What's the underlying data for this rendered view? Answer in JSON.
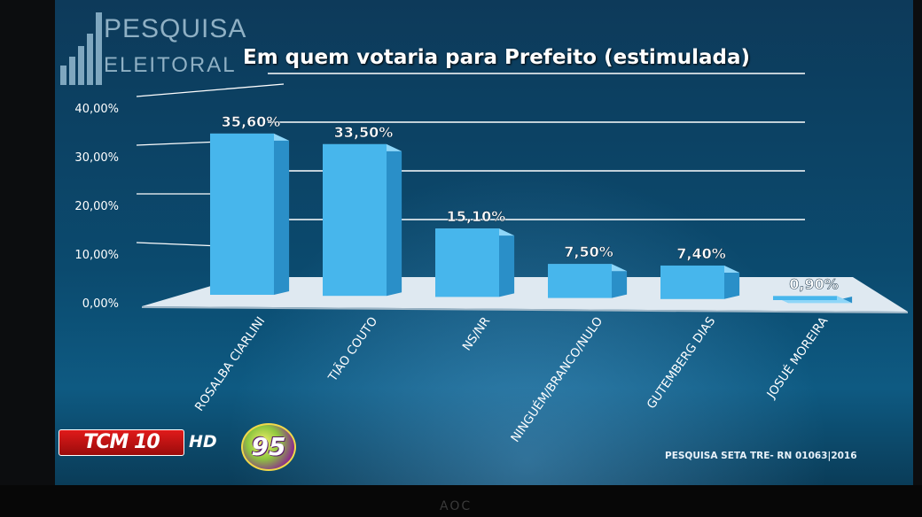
{
  "logo": {
    "line1": "PESQUISA",
    "line2": "ELEITORAL"
  },
  "chart_data": {
    "type": "bar",
    "title": "Em quem votaria para Prefeito (estimulada)",
    "categories": [
      "ROSALBA CIARLINI",
      "TIÃO COUTO",
      "NS/NR",
      "NINGUÉM/BRANCO/NULO",
      "GUTEMBERG DIAS",
      "JOSUÉ MOREIRA"
    ],
    "values": [
      35.6,
      33.5,
      15.1,
      7.5,
      7.4,
      0.9
    ],
    "value_labels": [
      "35,60%",
      "33,50%",
      "15,10%",
      "7,50%",
      "7,40%",
      "0,90%"
    ],
    "y_ticks": [
      0,
      10,
      20,
      30,
      40
    ],
    "y_tick_labels": [
      "0,00%",
      "10,00%",
      "20,00%",
      "30,00%",
      "40,00%"
    ],
    "ylim": [
      0,
      40
    ],
    "grid": true,
    "bar_color": "#47b6ec"
  },
  "footer": {
    "channel": "TCM 10",
    "hd": "HD",
    "radio": "95",
    "source": "PESQUISA SETA TRE- RN 01063|2016"
  },
  "monitor_brand": "AOC"
}
